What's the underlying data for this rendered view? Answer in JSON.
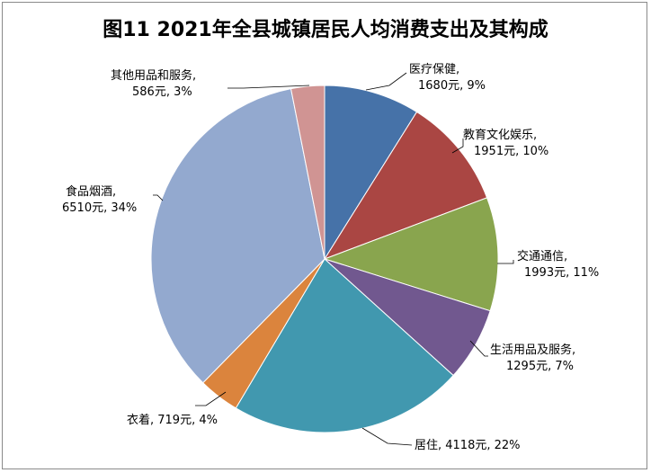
{
  "chart_data": {
    "type": "pie",
    "title": "图11  2021年全县城镇居民人均消费支出及其构成",
    "unit": "元",
    "slices": [
      {
        "name": "医疗保健",
        "value": 1680,
        "percent": "9%",
        "color": "#4672A8"
      },
      {
        "name": "教育文化娱乐",
        "value": 1951,
        "percent": "10%",
        "color": "#AA4643"
      },
      {
        "name": "交通通信",
        "value": 1993,
        "percent": "11%",
        "color": "#89A54E"
      },
      {
        "name": "生活用品及服务",
        "value": 1295,
        "percent": "7%",
        "color": "#71588F"
      },
      {
        "name": "居住",
        "value": 4118,
        "percent": "22%",
        "color": "#4198AF"
      },
      {
        "name": "衣着",
        "value": 719,
        "percent": "4%",
        "color": "#DB843D"
      },
      {
        "name": "食品烟酒",
        "value": 6510,
        "percent": "34%",
        "color": "#93A9CF"
      },
      {
        "name": "其他用品和服务",
        "value": 586,
        "percent": "3%",
        "color": "#D09493"
      }
    ]
  }
}
